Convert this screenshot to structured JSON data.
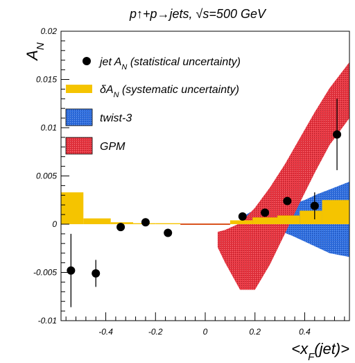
{
  "chart_data": {
    "type": "scatter",
    "title": "p↑+p→jets, √s=500 GeV",
    "xlabel": "<x_F(jet)>",
    "ylabel": "A_N",
    "xlim": [
      -0.58,
      0.58
    ],
    "ylim": [
      -0.01,
      0.02
    ],
    "x_ticks": [
      -0.4,
      -0.2,
      0,
      0.2,
      0.4
    ],
    "x_tick_labels": [
      "-0.4",
      "-0.2",
      "0",
      "0.2",
      "0.4"
    ],
    "y_ticks": [
      -0.01,
      -0.005,
      0,
      0.005,
      0.01,
      0.015,
      0.02
    ],
    "y_tick_labels": [
      "-0.01",
      "-0.005",
      "0",
      "0.005",
      "0.01",
      "0.015",
      "0.02"
    ],
    "legend": {
      "placement": "top-left",
      "entries": [
        {
          "label": "jet A_N (statistical uncertainty)",
          "marker": "dot"
        },
        {
          "label": "δA_N (systematic uncertainty)",
          "marker": "box"
        },
        {
          "label": "twist-3",
          "marker": "band"
        },
        {
          "label": "GPM",
          "marker": "band"
        }
      ]
    },
    "colors": {
      "points": "#000000",
      "systematic": "#f5c400",
      "twist3": "#2f6fe0",
      "gpm": "#e8343f",
      "zero_line": "#d9531e"
    },
    "series": [
      {
        "name": "jet A_N (statistical uncertainty)",
        "x": [
          -0.54,
          -0.44,
          -0.34,
          -0.24,
          -0.15,
          0.15,
          0.24,
          0.33,
          0.44,
          0.53
        ],
        "y": [
          -0.0048,
          -0.0051,
          -0.0003,
          0.0002,
          -0.0009,
          0.0008,
          0.0012,
          0.0024,
          0.0019,
          0.0093
        ],
        "yerr": [
          0.0038,
          0.0014,
          0.0002,
          0.0002,
          0.0002,
          0.0002,
          0.0002,
          0.0004,
          0.0014,
          0.0037
        ]
      },
      {
        "name": "δA_N (systematic uncertainty)",
        "bins": [
          {
            "x0": -0.58,
            "x1": -0.49,
            "y": 0.0033
          },
          {
            "x0": -0.49,
            "x1": -0.38,
            "y": 0.0006
          },
          {
            "x0": -0.38,
            "x1": -0.29,
            "y": 0.0002
          },
          {
            "x0": -0.29,
            "x1": -0.2,
            "y": 0.0001
          },
          {
            "x0": -0.2,
            "x1": -0.1,
            "y": 0.0001
          },
          {
            "x0": 0.1,
            "x1": 0.19,
            "y": 0.0004
          },
          {
            "x0": 0.19,
            "x1": 0.29,
            "y": 0.0007
          },
          {
            "x0": 0.29,
            "x1": 0.38,
            "y": 0.0009
          },
          {
            "x0": 0.38,
            "x1": 0.47,
            "y": 0.0014
          },
          {
            "x0": 0.47,
            "x1": 0.58,
            "y": 0.0025
          }
        ]
      },
      {
        "name": "twist-3",
        "x": [
          0.15,
          0.2,
          0.25,
          0.3,
          0.35,
          0.4,
          0.45,
          0.5,
          0.58
        ],
        "upper": [
          0.0008,
          0.0015,
          0.0019,
          0.0019,
          0.0021,
          0.0025,
          0.0031,
          0.0036,
          0.0044
        ],
        "lower": [
          0.0001,
          -0.0001,
          -0.0004,
          -0.0007,
          -0.0012,
          -0.0018,
          -0.0024,
          -0.003,
          -0.0034
        ]
      },
      {
        "name": "GPM",
        "x": [
          0.05,
          0.08,
          0.14,
          0.2,
          0.26,
          0.32,
          0.38,
          0.44,
          0.5,
          0.58
        ],
        "upper": [
          -0.0008,
          -0.0006,
          0.0001,
          0.0017,
          0.0038,
          0.0062,
          0.0089,
          0.0116,
          0.0141,
          0.0168
        ],
        "lower": [
          -0.0024,
          -0.004,
          -0.0068,
          -0.0068,
          -0.0042,
          -0.001,
          0.0022,
          0.0053,
          0.0082,
          0.011
        ]
      }
    ]
  }
}
